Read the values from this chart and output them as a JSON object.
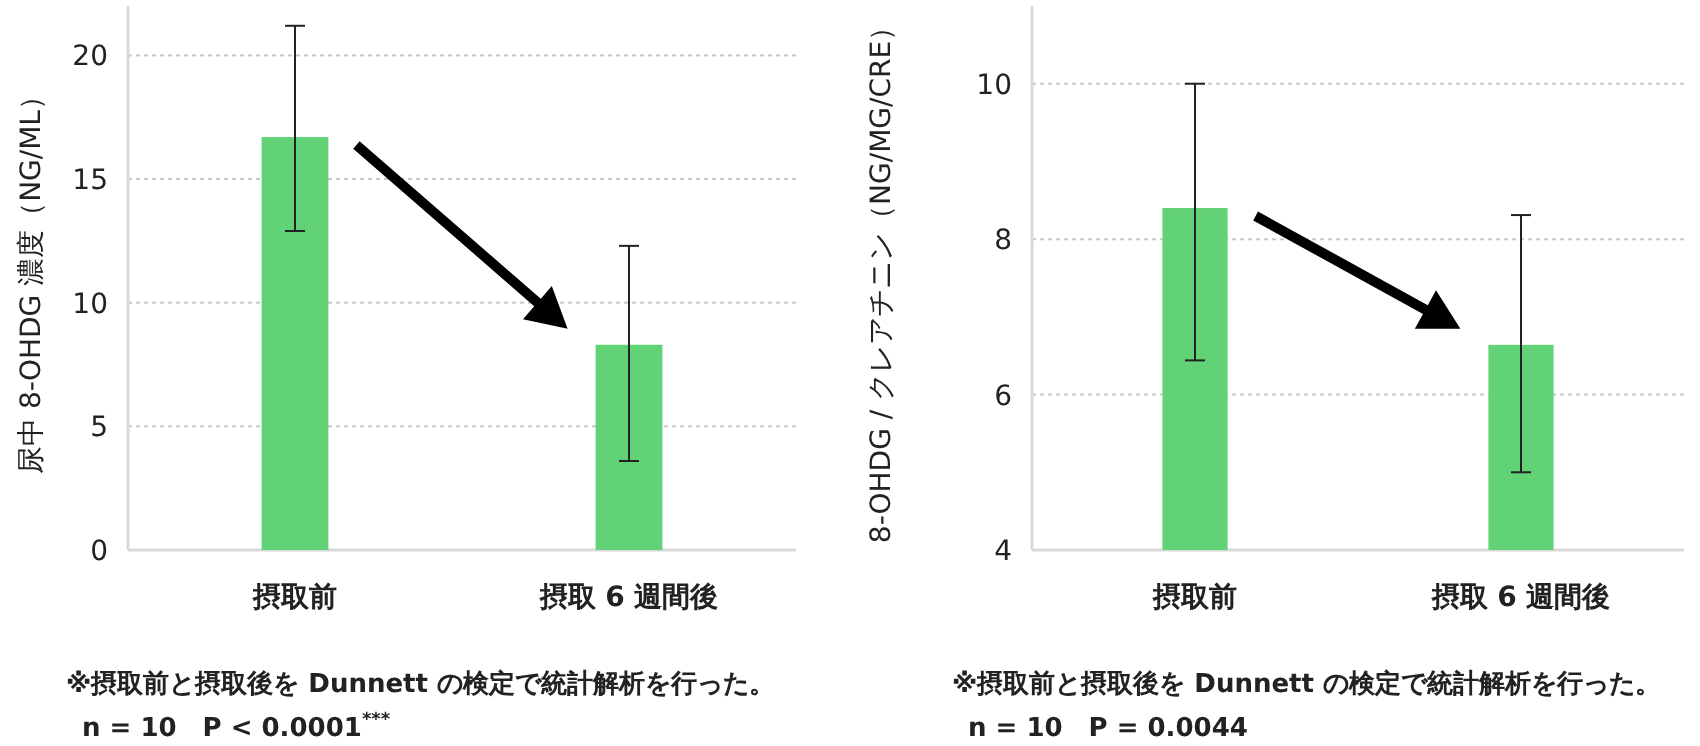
{
  "chart_data": [
    {
      "type": "bar",
      "ylabel": "尿中 8-OHDG 濃度（NG/ML）",
      "categories": [
        "摂取前",
        "摂取 6 週間後"
      ],
      "values": [
        16.7,
        8.3
      ],
      "errors": [
        [
          12.9,
          21.2
        ],
        [
          3.6,
          12.3
        ]
      ],
      "color": "#62d276",
      "ylim": [
        0,
        22
      ],
      "yticks": [
        0,
        5,
        10,
        15,
        20
      ],
      "grid": "y",
      "annotations": [
        "※摂取前と摂取後を Dunnett の検定で統計解析を行った。",
        "n = 10　P < 0.0001$^{***}$"
      ]
    },
    {
      "type": "bar",
      "ylabel": "8-OHDG / クレアチニン（NG/MG/CRE）",
      "categories": [
        "摂取前",
        "摂取 6 週間後"
      ],
      "values": [
        8.4,
        6.64
      ],
      "errors": [
        [
          6.44,
          10.0
        ],
        [
          5.0,
          8.31
        ]
      ],
      "color": "#62d276",
      "ylim": [
        4,
        11
      ],
      "yticks": [
        4,
        6,
        8,
        10
      ],
      "grid": "y",
      "annotations": [
        "※摂取前と摂取後を Dunnett の検定で統計解析を行った。",
        "n = 10　P = 0.0044"
      ]
    }
  ]
}
